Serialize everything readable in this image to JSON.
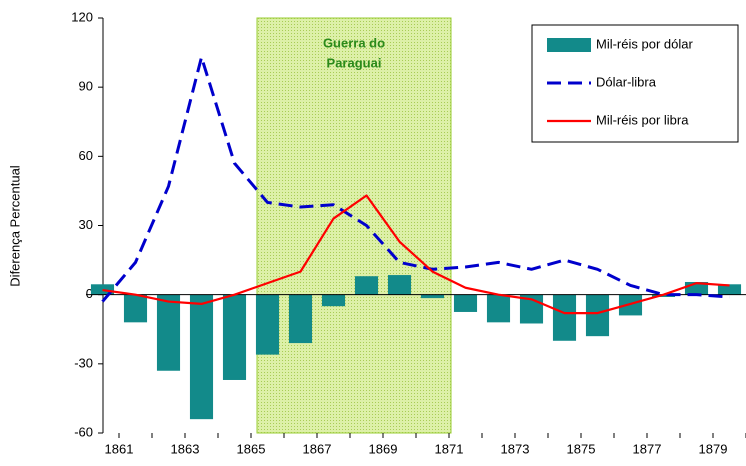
{
  "chart_data": {
    "type": "bar-line",
    "y_label": "Diferença Percentual",
    "categories": [
      "1861",
      null,
      "1863",
      null,
      "1865",
      null,
      "1867",
      null,
      "1869",
      null,
      "1871",
      null,
      "1873",
      null,
      "1875",
      null,
      "1877",
      null,
      "1879",
      null
    ],
    "ylim": [
      -60,
      120
    ],
    "yticks": [
      -60,
      -30,
      0,
      30,
      60,
      90,
      120
    ],
    "annotations": [
      {
        "lines": [
          "Guerra do",
          "Paraguai"
        ],
        "start": 5,
        "end": 10,
        "color": "#ccee88"
      }
    ],
    "series": [
      {
        "name": "Mil-réis por dólar",
        "type": "bar",
        "color": "#128a8a",
        "values": [
          4.5,
          -12,
          -33,
          -54,
          -37,
          -26,
          -21,
          -5,
          8,
          8.5,
          -1.5,
          -7.5,
          -12,
          -12.5,
          -20,
          -18,
          -9,
          -1,
          5.5,
          4.5
        ]
      },
      {
        "name": "Dólar-libra",
        "type": "line",
        "dashed": true,
        "color": "#0000cc",
        "values": [
          -3,
          14,
          47,
          103,
          57,
          40,
          38,
          39,
          30,
          14,
          11,
          12,
          14,
          11,
          15,
          11,
          4,
          0,
          0,
          -1
        ]
      },
      {
        "name": "Mil-réis por libra",
        "type": "line",
        "dashed": false,
        "color": "#ff0000",
        "values": [
          2,
          0,
          -3,
          -4,
          0,
          5,
          10,
          33,
          43,
          23,
          10,
          3,
          0,
          -2,
          -8,
          -8,
          -4,
          0,
          5,
          4
        ]
      }
    ]
  }
}
